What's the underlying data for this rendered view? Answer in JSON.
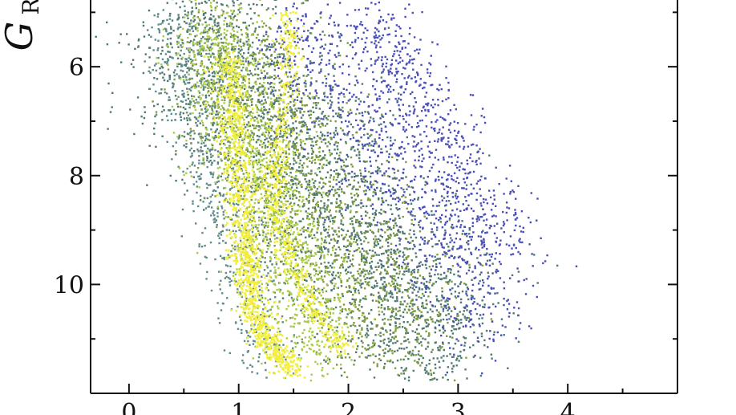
{
  "chart_data": {
    "type": "scatter",
    "title": "",
    "xlabel": "",
    "ylabel": "G",
    "ylabel_subscript": "R",
    "xlim": [
      -0.35,
      5.0
    ],
    "ylim": [
      12.0,
      4.7
    ],
    "y_inverted": true,
    "grid": false,
    "x_ticks": [
      {
        "value": 0,
        "label": "0"
      },
      {
        "value": 1,
        "label": "1"
      },
      {
        "value": 2,
        "label": "2"
      },
      {
        "value": 3,
        "label": "3"
      },
      {
        "value": 4,
        "label": "4"
      }
    ],
    "x_minor_ticks": [
      0.5,
      1.5,
      2.5,
      3.5,
      4.5
    ],
    "y_ticks": [
      {
        "value": 6,
        "label": "6"
      },
      {
        "value": 8,
        "label": "8"
      },
      {
        "value": 10,
        "label": "10"
      }
    ],
    "y_minor_ticks": [
      5,
      7,
      9,
      11
    ],
    "colors": {
      "blue": "#4a4fb8",
      "dark_teal": "#4f7a73",
      "slate_teal": "#5e8c8a",
      "olive": "#7f9c3e",
      "lime": "#aacb49",
      "yellow": "#f2ee3a"
    },
    "series": [
      {
        "color": "#4f7a73",
        "bands": [
          {
            "x0": 0.55,
            "x1": 2.95,
            "y_top": 5.0,
            "y_bot": 11.3,
            "spread": 0.55,
            "n": 2600
          }
        ]
      },
      {
        "color": "#5e8c8a",
        "bands": [
          {
            "x0": 0.35,
            "x1": 1.3,
            "y_top": 5.0,
            "y_bot": 11.6,
            "spread": 0.25,
            "n": 700
          }
        ]
      },
      {
        "color": "#7f9c3e",
        "bands": [
          {
            "x0": 0.8,
            "x1": 2.6,
            "y_top": 5.5,
            "y_bot": 11.2,
            "spread": 0.5,
            "n": 1400
          }
        ]
      },
      {
        "color": "#aacb49",
        "bands": [
          {
            "x0": 0.65,
            "x1": 1.8,
            "y_top": 5.0,
            "y_bot": 11.4,
            "spread": 0.32,
            "n": 1400
          }
        ]
      },
      {
        "color": "#4a4fb8",
        "bands": [
          {
            "x0": 1.5,
            "x1": 3.4,
            "y_top": 5.0,
            "y_bot": 10.6,
            "spread": 0.4,
            "n": 900
          },
          {
            "x0": 2.2,
            "x1": 3.5,
            "y_top": 5.0,
            "y_bot": 9.4,
            "spread": 0.25,
            "n": 500
          }
        ]
      },
      {
        "color": "#f2ee3a",
        "curves": [
          {
            "points": [
              [
                0.9,
                5.8
              ],
              [
                0.95,
                7.0
              ],
              [
                1.0,
                8.3
              ],
              [
                1.05,
                9.4
              ],
              [
                1.1,
                10.3
              ],
              [
                1.25,
                11.0
              ],
              [
                1.5,
                11.6
              ]
            ],
            "spread": 0.07,
            "n": 1100
          },
          {
            "points": [
              [
                1.45,
                5.0
              ],
              [
                1.45,
                6.0
              ],
              [
                1.35,
                7.5
              ],
              [
                1.3,
                8.5
              ],
              [
                1.45,
                9.5
              ],
              [
                1.7,
                10.5
              ],
              [
                1.95,
                11.2
              ]
            ],
            "spread": 0.06,
            "n": 550
          }
        ]
      }
    ]
  }
}
